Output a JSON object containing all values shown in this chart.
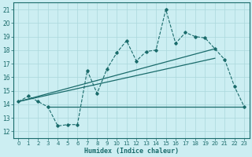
{
  "xlabel": "Humidex (Indice chaleur)",
  "bg_color": "#cceef2",
  "line_color": "#1a6b6b",
  "grid_color": "#aad8dc",
  "xlim": [
    -0.5,
    23.5
  ],
  "ylim": [
    11.5,
    21.5
  ],
  "yticks": [
    12,
    13,
    14,
    15,
    16,
    17,
    18,
    19,
    20,
    21
  ],
  "xticks": [
    0,
    1,
    2,
    3,
    4,
    5,
    6,
    7,
    8,
    9,
    10,
    11,
    12,
    13,
    14,
    15,
    16,
    17,
    18,
    19,
    20,
    21,
    22,
    23
  ],
  "main_series_x": [
    0,
    1,
    2,
    3,
    4,
    5,
    6,
    7,
    8,
    9,
    10,
    11,
    12,
    13,
    14,
    15,
    16,
    17,
    18,
    19,
    20,
    21,
    22,
    23
  ],
  "main_series_y": [
    14.2,
    14.6,
    14.2,
    13.8,
    12.4,
    12.5,
    12.5,
    16.5,
    14.8,
    16.6,
    17.8,
    18.7,
    17.2,
    17.9,
    18.0,
    21.0,
    18.5,
    19.3,
    19.0,
    18.9,
    18.1,
    17.3,
    15.3,
    13.8
  ],
  "trend_line1_x": [
    0,
    20
  ],
  "trend_line1_y": [
    14.2,
    18.1
  ],
  "trend_line2_x": [
    3,
    23
  ],
  "trend_line2_y": [
    13.8,
    13.8
  ],
  "trend_line3_x": [
    0,
    20
  ],
  "trend_line3_y": [
    14.2,
    17.4
  ]
}
